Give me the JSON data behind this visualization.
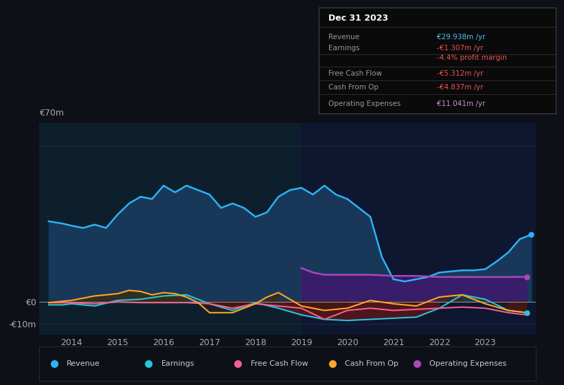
{
  "bg_color": "#0d1117",
  "plot_bg_color": "#0d1f2d",
  "grid_color": "#1e3a4a",
  "title_box": {
    "date": "Dec 31 2023",
    "rows": [
      {
        "label": "Revenue",
        "value": "€29.938m /yr",
        "value_color": "#4fc3f7"
      },
      {
        "label": "Earnings",
        "value": "-€1.307m /yr",
        "value_color": "#ef5350"
      },
      {
        "label": "",
        "value": "-4.4% profit margin",
        "value_color": "#ef5350"
      },
      {
        "label": "Free Cash Flow",
        "value": "-€5.312m /yr",
        "value_color": "#ef5350"
      },
      {
        "label": "Cash From Op",
        "value": "-€4.837m /yr",
        "value_color": "#ef5350"
      },
      {
        "label": "Operating Expenses",
        "value": "€11.041m /yr",
        "value_color": "#ce93d8"
      }
    ]
  },
  "ylim": [
    -15000000,
    80000000
  ],
  "yticks": [
    -10000000,
    0
  ],
  "ytick_labels": [
    "-€10m",
    "€0"
  ],
  "y70m_label": "€70m",
  "xtick_years": [
    2014,
    2015,
    2016,
    2017,
    2018,
    2019,
    2020,
    2021,
    2022,
    2023
  ],
  "shaded_x_start": 2019.0,
  "revenue_color": "#29b6f6",
  "earnings_color": "#26c6da",
  "fcf_color": "#f06292",
  "cashop_color": "#ffa726",
  "opex_color": "#ab47bc",
  "revenue_fill_color": "#1a3a5c",
  "opex_fill_color": "#3d1a6e",
  "legend_items": [
    {
      "label": "Revenue",
      "color": "#29b6f6"
    },
    {
      "label": "Earnings",
      "color": "#26c6da"
    },
    {
      "label": "Free Cash Flow",
      "color": "#f06292"
    },
    {
      "label": "Cash From Op",
      "color": "#ffa726"
    },
    {
      "label": "Operating Expenses",
      "color": "#ab47bc"
    }
  ],
  "revenue": {
    "x": [
      2013.5,
      2013.8,
      2014.0,
      2014.25,
      2014.5,
      2014.75,
      2015.0,
      2015.25,
      2015.5,
      2015.75,
      2016.0,
      2016.25,
      2016.5,
      2016.75,
      2017.0,
      2017.25,
      2017.5,
      2017.75,
      2018.0,
      2018.25,
      2018.5,
      2018.75,
      2019.0,
      2019.25,
      2019.5,
      2019.75,
      2020.0,
      2020.25,
      2020.5,
      2020.75,
      2021.0,
      2021.25,
      2021.5,
      2021.75,
      2022.0,
      2022.25,
      2022.5,
      2022.75,
      2023.0,
      2023.25,
      2023.5,
      2023.75,
      2024.0
    ],
    "y": [
      36000000,
      35000000,
      34000000,
      33000000,
      34500000,
      33000000,
      39000000,
      44000000,
      47000000,
      46000000,
      52000000,
      49000000,
      52000000,
      50000000,
      48000000,
      42000000,
      44000000,
      42000000,
      38000000,
      40000000,
      47000000,
      50000000,
      51000000,
      48000000,
      52000000,
      48000000,
      46000000,
      42000000,
      38000000,
      20000000,
      10000000,
      9000000,
      10000000,
      11000000,
      13000000,
      13500000,
      14000000,
      14000000,
      14500000,
      18000000,
      22000000,
      28000000,
      30000000
    ]
  },
  "earnings": {
    "x": [
      2013.5,
      2013.8,
      2014.0,
      2014.5,
      2015.0,
      2015.5,
      2016.0,
      2016.5,
      2017.0,
      2017.5,
      2018.0,
      2018.5,
      2019.0,
      2019.5,
      2020.0,
      2020.5,
      2021.0,
      2021.5,
      2022.0,
      2022.5,
      2023.0,
      2023.5,
      2023.9
    ],
    "y": [
      -1500000,
      -1500000,
      -1000000,
      -2000000,
      500000,
      1000000,
      2500000,
      3000000,
      -1000000,
      -4000000,
      -500000,
      -3000000,
      -6000000,
      -8000000,
      -8500000,
      -8000000,
      -7500000,
      -7000000,
      -3000000,
      3000000,
      1000000,
      -4000000,
      -5000000
    ]
  },
  "fcf": {
    "x": [
      2013.5,
      2014.0,
      2014.5,
      2015.0,
      2015.5,
      2016.0,
      2016.5,
      2017.0,
      2017.5,
      2018.0,
      2018.5,
      2019.0,
      2019.5,
      2020.0,
      2020.5,
      2021.0,
      2021.5,
      2022.0,
      2022.5,
      2023.0,
      2023.5,
      2023.9
    ],
    "y": [
      -500000,
      -500000,
      -1000000,
      -200000,
      -500000,
      -500000,
      -500000,
      -1000000,
      -3000000,
      -1000000,
      -2000000,
      -3000000,
      -8000000,
      -4000000,
      -3000000,
      -4000000,
      -3500000,
      -3000000,
      -2500000,
      -3000000,
      -5000000,
      -6000000
    ]
  },
  "cashop": {
    "x": [
      2013.5,
      2014.0,
      2014.5,
      2015.0,
      2015.25,
      2015.5,
      2015.75,
      2016.0,
      2016.25,
      2016.5,
      2016.75,
      2017.0,
      2017.5,
      2018.0,
      2018.25,
      2018.5,
      2019.0,
      2019.5,
      2020.0,
      2020.5,
      2021.0,
      2021.5,
      2022.0,
      2022.5,
      2023.0,
      2023.5,
      2023.9
    ],
    "y": [
      -500000,
      500000,
      2500000,
      3500000,
      5000000,
      4500000,
      3000000,
      4000000,
      3500000,
      2000000,
      -500000,
      -5000000,
      -5000000,
      -1000000,
      2000000,
      4000000,
      -2000000,
      -4000000,
      -3000000,
      500000,
      -1000000,
      -2000000,
      2000000,
      3000000,
      -1000000,
      -4000000,
      -5000000
    ]
  },
  "opex": {
    "x": [
      2019.0,
      2019.25,
      2019.5,
      2019.75,
      2020.0,
      2020.5,
      2021.0,
      2021.5,
      2022.0,
      2022.5,
      2023.0,
      2023.5,
      2023.9
    ],
    "y": [
      15000000,
      13000000,
      12000000,
      12000000,
      12000000,
      12000000,
      11500000,
      11500000,
      11000000,
      11000000,
      11000000,
      11000000,
      11041000
    ]
  }
}
